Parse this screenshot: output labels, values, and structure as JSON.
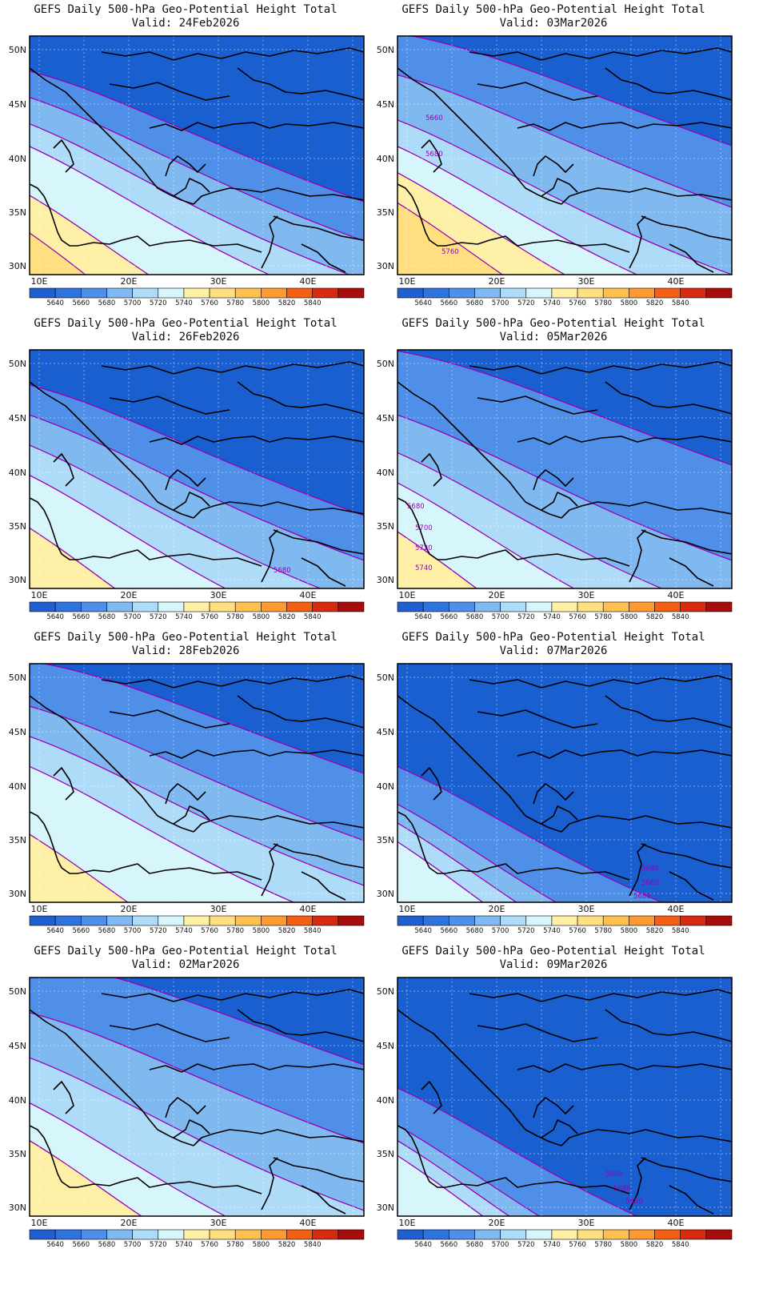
{
  "panels": [
    {
      "title": "GEFS Daily 500-hPa Geo-Potential Height Total",
      "valid": "Valid: 24Feb2026",
      "contour_labels": [],
      "bands": [
        {
          "color": "#4f8fe8",
          "off": 110,
          "amp": 0,
          "bump": 0
        },
        {
          "color": "#80b8f0",
          "off": 145,
          "amp": 0,
          "bump": 0
        },
        {
          "color": "#aedcf8",
          "off": 180,
          "amp": 0,
          "bump": 0
        },
        {
          "color": "#d7f6fb",
          "off": 210,
          "amp": 0,
          "bump": 0
        },
        {
          "color": "#fff0a8",
          "off": 275,
          "amp": 0,
          "bump": 0
        },
        {
          "color": "#ffdf80",
          "off": 325,
          "amp": 0,
          "bump": 0
        }
      ]
    },
    {
      "title": "GEFS Daily 500-hPa Geo-Potential Height Total",
      "valid": "Valid: 03Mar2026",
      "contour_labels": [
        {
          "text": "5660",
          "x": 35,
          "y": 105
        },
        {
          "text": "5680",
          "x": 35,
          "y": 150
        },
        {
          "text": "5760",
          "x": 55,
          "y": 272
        }
      ],
      "bands": [
        {
          "color": "#4f8fe8",
          "off": 60,
          "amp": 0,
          "bump": 0
        },
        {
          "color": "#80b8f0",
          "off": 115,
          "amp": 0,
          "bump": 0
        },
        {
          "color": "#aedcf8",
          "off": 175,
          "amp": 0,
          "bump": 0
        },
        {
          "color": "#d7f6fb",
          "off": 210,
          "amp": 0,
          "bump": 0
        },
        {
          "color": "#fff0a8",
          "off": 245,
          "amp": 0,
          "bump": 0
        },
        {
          "color": "#ffdf80",
          "off": 285,
          "amp": 0,
          "bump": 0
        }
      ]
    },
    {
      "title": "GEFS Daily 500-hPa Geo-Potential Height Total",
      "valid": "Valid: 26Feb2026",
      "contour_labels": [
        {
          "text": "5680",
          "x": 305,
          "y": 278
        }
      ],
      "bands": [
        {
          "color": "#4f8fe8",
          "off": 110,
          "amp": 0,
          "bump": 0
        },
        {
          "color": "#80b8f0",
          "off": 150,
          "amp": 0,
          "bump": 0
        },
        {
          "color": "#aedcf8",
          "off": 190,
          "amp": 0,
          "bump": 0
        },
        {
          "color": "#d7f6fb",
          "off": 230,
          "amp": 0,
          "bump": 0
        },
        {
          "color": "#fff0a8",
          "off": 300,
          "amp": 0,
          "bump": 0
        }
      ]
    },
    {
      "title": "GEFS Daily 500-hPa Geo-Potential Height Total",
      "valid": "Valid: 05Mar2026",
      "contour_labels": [
        {
          "text": "5680",
          "x": 12,
          "y": 198
        },
        {
          "text": "5700",
          "x": 22,
          "y": 225
        },
        {
          "text": "5720",
          "x": 22,
          "y": 250
        },
        {
          "text": "5740",
          "x": 22,
          "y": 275
        }
      ],
      "bands": [
        {
          "color": "#4f8fe8",
          "off": 65,
          "amp": 0,
          "bump": 0
        },
        {
          "color": "#80b8f0",
          "off": 150,
          "amp": 0,
          "bump": 0
        },
        {
          "color": "#aedcf8",
          "off": 200,
          "amp": 0,
          "bump": 0
        },
        {
          "color": "#d7f6fb",
          "off": 240,
          "amp": 0,
          "bump": 0
        },
        {
          "color": "#fff0a8",
          "off": 305,
          "amp": 0,
          "bump": 0
        }
      ]
    },
    {
      "title": "GEFS Daily 500-hPa Geo-Potential Height Total",
      "valid": "Valid: 28Feb2026",
      "contour_labels": [],
      "bands": [
        {
          "color": "#4f8fe8",
          "off": 60,
          "amp": 0,
          "bump": 0
        },
        {
          "color": "#80b8f0",
          "off": 120,
          "amp": 0,
          "bump": 0
        },
        {
          "color": "#aedcf8",
          "off": 160,
          "amp": 0,
          "bump": 0
        },
        {
          "color": "#d7f6fb",
          "off": 200,
          "amp": 0,
          "bump": 0
        },
        {
          "color": "#fff0a8",
          "off": 290,
          "amp": 0,
          "bump": 0
        }
      ]
    },
    {
      "title": "GEFS Daily 500-hPa Geo-Potential Height Total",
      "valid": "Valid: 07Mar2026",
      "contour_labels": [
        {
          "text": "5680",
          "x": 305,
          "y": 258
        },
        {
          "text": "5660",
          "x": 305,
          "y": 276
        },
        {
          "text": "5680",
          "x": 295,
          "y": 293
        }
      ],
      "bands": [
        {
          "color": "#4f8fe8",
          "off": 200,
          "amp": 0,
          "bump": 0
        },
        {
          "color": "#80b8f0",
          "off": 250,
          "amp": 0,
          "bump": 0
        },
        {
          "color": "#aedcf8",
          "off": 275,
          "amp": 0,
          "bump": 0
        },
        {
          "color": "#d7f6fb",
          "off": 300,
          "amp": 0,
          "bump": 0
        }
      ]
    },
    {
      "title": "GEFS Daily 500-hPa Geo-Potential Height Total",
      "valid": "Valid: 02Mar2026",
      "contour_labels": [],
      "bands": [
        {
          "color": "#4f8fe8",
          "off": 40,
          "amp": 0,
          "bump": 0
        },
        {
          "color": "#80b8f0",
          "off": 110,
          "amp": 0,
          "bump": 0
        },
        {
          "color": "#aedcf8",
          "off": 170,
          "amp": 0,
          "bump": 0
        },
        {
          "color": "#d7f6fb",
          "off": 230,
          "amp": 0,
          "bump": 0
        },
        {
          "color": "#fff0a8",
          "off": 280,
          "amp": 0,
          "bump": 0
        }
      ]
    },
    {
      "title": "GEFS Daily 500-hPa Geo-Potential Height Total",
      "valid": "Valid: 09Mar2026",
      "contour_labels": [
        {
          "text": "5640",
          "x": 260,
          "y": 248
        },
        {
          "text": "5660",
          "x": 270,
          "y": 266
        },
        {
          "text": "5680",
          "x": 285,
          "y": 282
        }
      ],
      "bands": [
        {
          "color": "#4f8fe8",
          "off": 210,
          "amp": 0,
          "bump": 0
        },
        {
          "color": "#80b8f0",
          "off": 260,
          "amp": 0,
          "bump": 0
        },
        {
          "color": "#aedcf8",
          "off": 280,
          "amp": 0,
          "bump": 0
        },
        {
          "color": "#d7f6fb",
          "off": 300,
          "amp": 0,
          "bump": 0
        }
      ]
    }
  ],
  "lat_labels": [
    "50N",
    "45N",
    "40N",
    "35N",
    "30N"
  ],
  "lon_labels": [
    "10E",
    "20E",
    "30E",
    "40E"
  ],
  "colorbar": {
    "labels": [
      "5640",
      "5660",
      "5680",
      "5700",
      "5720",
      "5740",
      "5760",
      "5780",
      "5800",
      "5820",
      "5840"
    ],
    "colors": [
      "#1f5fcf",
      "#2f74de",
      "#4f8fe8",
      "#80b8f0",
      "#aedcf8",
      "#d7f6fb",
      "#fff0a8",
      "#ffdf80",
      "#ffc050",
      "#ff9a30",
      "#f45f14",
      "#d82a10",
      "#a80c0c"
    ]
  },
  "base_color": "#1a5fd0",
  "contour_color": "#9a00b5"
}
